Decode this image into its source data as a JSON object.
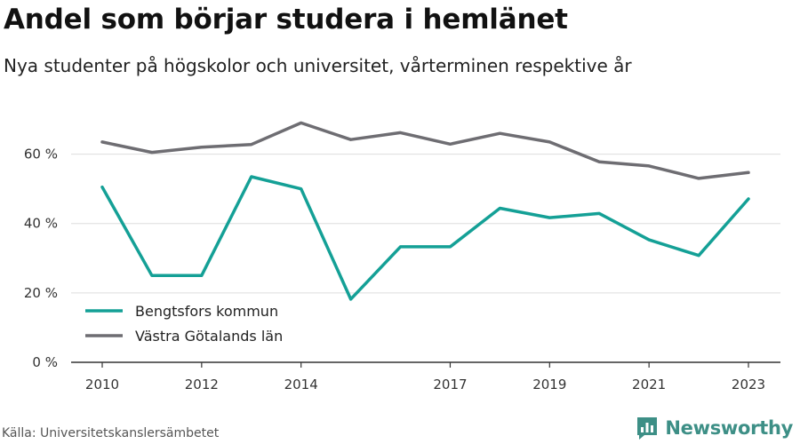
{
  "header": {
    "title": "Andel som börjar studera i hemlänet",
    "subtitle": "Nya studenter på högskolor och universitet, vårterminen respektive år"
  },
  "footer": {
    "source": "Källa: Universitetskanslersämbetet",
    "brand": "Newsworthy"
  },
  "colors": {
    "bengtsfors": "#14a096",
    "vastra_gotaland": "#6e6d72",
    "grid": "#dddddd",
    "axis": "#333333",
    "brand": "#3d8f86"
  },
  "chart_data": {
    "type": "line",
    "x": [
      2010,
      2011,
      2012,
      2013,
      2014,
      2015,
      2016,
      2017,
      2018,
      2019,
      2020,
      2021,
      2022,
      2023
    ],
    "xticks": [
      2010,
      2012,
      2014,
      2017,
      2019,
      2021,
      2023
    ],
    "ylim": [
      0,
      75
    ],
    "yticks": [
      0,
      20,
      40,
      60
    ],
    "ytick_suffix": " %",
    "grid": true,
    "legend_position": "bottom-left",
    "series": [
      {
        "name": "Bengtsfors kommun",
        "color": "#14a096",
        "values": [
          50.5,
          25,
          25,
          53.5,
          50,
          18.2,
          33.3,
          33.3,
          44.4,
          41.7,
          42.9,
          35.3,
          30.8,
          47.1
        ]
      },
      {
        "name": "Västra Götalands län",
        "color": "#6e6d72",
        "values": [
          63.5,
          60.5,
          62,
          62.8,
          69,
          64.2,
          66.2,
          62.9,
          66,
          63.5,
          57.8,
          56.6,
          53,
          54.7
        ]
      }
    ]
  }
}
